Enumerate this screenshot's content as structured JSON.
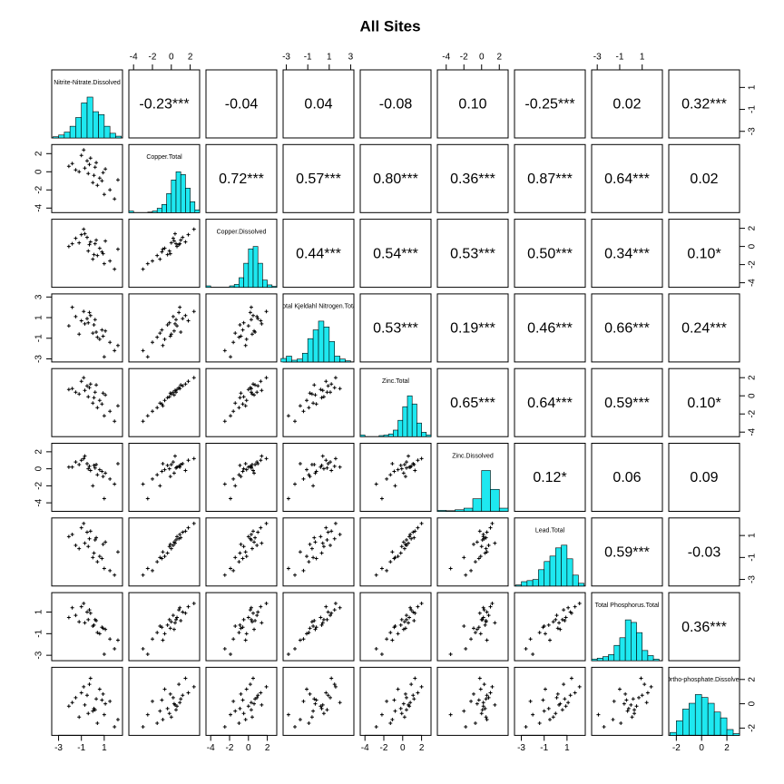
{
  "chart_data": {
    "type": "pairs",
    "title": "All Sites",
    "point_color": "#000000",
    "hist_color": "#1ee8f0",
    "variables": [
      {
        "name": "Nitrite-Nitrate.Dissolved",
        "lim": [
          -3.6,
          2.6
        ],
        "ticks": [
          -3,
          -1,
          1
        ],
        "bins": [
          -3.5,
          -3,
          -2.5,
          -2,
          -1.5,
          -1,
          -0.5,
          0,
          0.5,
          1,
          1.5,
          2,
          2.5
        ],
        "counts": [
          2,
          5,
          10,
          20,
          35,
          60,
          70,
          45,
          40,
          20,
          8,
          3
        ]
      },
      {
        "name": "Copper.Total",
        "lim": [
          -4.5,
          3
        ],
        "ticks": [
          -4,
          -2,
          0,
          2
        ],
        "bins": [
          -4.5,
          -4,
          -3.5,
          -3,
          -2.5,
          -2,
          -1.5,
          -1,
          -0.5,
          0,
          0.5,
          1,
          1.5,
          2,
          2.5,
          3
        ],
        "counts": [
          3,
          0,
          0,
          0,
          1,
          3,
          8,
          15,
          35,
          60,
          75,
          70,
          45,
          20,
          5
        ]
      },
      {
        "name": "Copper.Dissolved",
        "lim": [
          -4.5,
          3
        ],
        "ticks": [
          -4,
          -2,
          0,
          2
        ],
        "bins": [
          -4.5,
          -4,
          -3.5,
          -3,
          -2.5,
          -2,
          -1.5,
          -1,
          -0.5,
          0,
          0.5,
          1,
          1.5,
          2,
          2.5,
          3
        ],
        "counts": [
          3,
          0,
          0,
          0,
          0,
          3,
          6,
          20,
          50,
          80,
          85,
          50,
          15,
          5,
          2
        ]
      },
      {
        "name": "Total Kjeldahl Nitrogen.Total",
        "lim": [
          -3.3,
          3.3
        ],
        "ticks": [
          -3,
          -1,
          1,
          3
        ],
        "bins": [
          -3.5,
          -3,
          -2.5,
          -2,
          -1.5,
          -1,
          -0.5,
          0,
          0.5,
          1,
          1.5,
          2,
          2.5,
          3
        ],
        "counts": [
          6,
          10,
          3,
          5,
          15,
          40,
          55,
          70,
          60,
          35,
          10,
          5,
          2
        ]
      },
      {
        "name": "Zinc.Total",
        "lim": [
          -4.5,
          3
        ],
        "ticks": [
          -4,
          -2,
          0,
          2
        ],
        "bins": [
          -4.5,
          -4,
          -3.5,
          -3,
          -2.5,
          -2,
          -1.5,
          -1,
          -0.5,
          0,
          0.5,
          1,
          1.5,
          2,
          2.5,
          3
        ],
        "counts": [
          3,
          0,
          0,
          0,
          2,
          3,
          5,
          12,
          30,
          55,
          75,
          60,
          25,
          8,
          3
        ]
      },
      {
        "name": "Zinc.Dissolved",
        "lim": [
          -5,
          3
        ],
        "ticks": [
          -4,
          -2,
          0,
          2
        ],
        "bins": [
          -5,
          -4,
          -3,
          -2,
          -1,
          0,
          1,
          2,
          3
        ],
        "counts": [
          3,
          2,
          5,
          10,
          40,
          130,
          70,
          10
        ]
      },
      {
        "name": "Lead.Total",
        "lim": [
          -3.6,
          2.6
        ],
        "ticks": [
          -3,
          -1,
          1
        ],
        "bins": [
          -3.5,
          -3,
          -2.5,
          -2,
          -1.5,
          -1,
          -0.5,
          0,
          0.5,
          1,
          1.5,
          2,
          2.5
        ],
        "counts": [
          2,
          8,
          10,
          12,
          30,
          45,
          55,
          70,
          75,
          50,
          20,
          5
        ]
      },
      {
        "name": "Total Phosphorus.Total",
        "lim": [
          -3.5,
          2.8
        ],
        "ticks": [
          -3,
          -1,
          1
        ],
        "bins": [
          -3.5,
          -3,
          -2.5,
          -2,
          -1.5,
          -1,
          -0.5,
          0,
          0.5,
          1,
          1.5,
          2,
          2.5
        ],
        "counts": [
          3,
          5,
          8,
          12,
          30,
          45,
          80,
          75,
          55,
          20,
          10,
          3
        ]
      },
      {
        "name": "Ortho-phosphate.Dissolved",
        "lim": [
          -2.6,
          3
        ],
        "ticks": [
          -2,
          0,
          2
        ],
        "bins": [
          -2.5,
          -2,
          -1.5,
          -1,
          -0.5,
          0,
          0.5,
          1,
          1.5,
          2,
          2.5,
          3
        ],
        "counts": [
          5,
          25,
          45,
          55,
          70,
          65,
          55,
          40,
          30,
          10,
          3
        ]
      }
    ],
    "correlations": {
      "values": [
        [
          -0.23,
          -0.04,
          0.04,
          -0.08,
          0.1,
          -0.25,
          0.02,
          0.32
        ],
        [
          0.72,
          0.57,
          0.8,
          0.36,
          0.87,
          0.64,
          0.02
        ],
        [
          0.44,
          0.54,
          0.53,
          0.5,
          0.34,
          0.1
        ],
        [
          0.53,
          0.19,
          0.46,
          0.66,
          0.24
        ],
        [
          0.65,
          0.64,
          0.59,
          0.1
        ],
        [
          0.12,
          0.06,
          0.09
        ],
        [
          0.59,
          -0.03
        ],
        [
          0.36
        ]
      ],
      "value_labels": [
        [
          "-0.23***",
          "-0.04",
          "0.04",
          "-0.08",
          "0.10",
          "-0.25***",
          "0.02",
          "0.32***"
        ],
        [
          "0.72***",
          "0.57***",
          "0.80***",
          "0.36***",
          "0.87***",
          "0.64***",
          "0.02"
        ],
        [
          "0.44***",
          "0.54***",
          "0.53***",
          "0.50***",
          "0.34***",
          "0.10*"
        ],
        [
          "0.53***",
          "0.19***",
          "0.46***",
          "0.66***",
          "0.24***"
        ],
        [
          "0.65***",
          "0.64***",
          "0.59***",
          "0.10*"
        ],
        [
          "0.12*",
          "0.06",
          "0.09"
        ],
        [
          "0.59***",
          "-0.03"
        ],
        [
          "0.36***"
        ]
      ]
    },
    "observations": [
      [
        0.2,
        0.5,
        0.3,
        0.8,
        0.4,
        0.1,
        0.6,
        0.3,
        -0.5
      ],
      [
        0.8,
        -1.0,
        -0.6,
        -0.2,
        -0.9,
        -0.3,
        -1.1,
        -0.4,
        0.3
      ],
      [
        -0.5,
        1.2,
        1.0,
        0.9,
        1.1,
        0.6,
        1.3,
        1.0,
        0.7
      ],
      [
        -1.2,
        0.0,
        0.4,
        -0.6,
        0.2,
        0.5,
        -0.2,
        0.1,
        -1.1
      ],
      [
        1.5,
        -2.0,
        -1.6,
        -1.4,
        -1.7,
        -1.2,
        -2.2,
        -1.5,
        0.2
      ],
      [
        -0.3,
        0.8,
        0.2,
        1.5,
        0.9,
        0.3,
        0.7,
        1.2,
        1.6
      ],
      [
        0.1,
        -0.4,
        -0.9,
        0.3,
        -0.2,
        0.4,
        -0.6,
        -0.2,
        -0.4
      ],
      [
        -1.0,
        1.8,
        1.3,
        0.7,
        1.6,
        1.0,
        1.7,
        1.5,
        0.9
      ],
      [
        1.1,
        0.3,
        0.6,
        -0.3,
        0.1,
        -0.5,
        0.4,
        -0.6,
        0.0
      ],
      [
        0.4,
        -1.5,
        -1.0,
        -0.9,
        -1.3,
        -0.7,
        -1.4,
        -0.9,
        -1.6
      ],
      [
        -2.1,
        0.6,
        0.0,
        0.2,
        0.7,
        0.2,
        0.9,
        0.5,
        -0.2
      ],
      [
        0.6,
        -0.7,
        -0.2,
        -1.1,
        -0.5,
        -0.1,
        -0.9,
        -1.0,
        1.2
      ],
      [
        -0.8,
        2.4,
        1.9,
        1.6,
        2.0,
        1.2,
        2.1,
        1.8,
        1.4
      ],
      [
        -0.4,
        -0.2,
        -0.5,
        0.5,
        -0.1,
        0.0,
        0.0,
        0.3,
        -0.8
      ],
      [
        0.3,
        1.0,
        0.7,
        -0.4,
        1.2,
        0.5,
        0.8,
        0.2,
        0.4
      ],
      [
        1.9,
        -3.0,
        -2.5,
        -2.2,
        -2.8,
        -1.8,
        -2.6,
        -2.4,
        -1.9
      ],
      [
        -1.5,
        0.2,
        0.9,
        1.1,
        0.4,
        0.8,
        0.1,
        0.7,
        0.5
      ],
      [
        0.0,
        -1.2,
        -1.4,
        -0.5,
        -0.8,
        -2.0,
        -1.0,
        -0.3,
        -0.6
      ],
      [
        -0.2,
        1.5,
        0.5,
        1.2,
        1.3,
        -0.2,
        1.4,
        0.9,
        2.1
      ],
      [
        2.2,
        -0.9,
        -0.3,
        -1.7,
        -1.1,
        0.6,
        -0.5,
        -1.6,
        -1.3
      ],
      [
        -0.7,
        0.4,
        1.4,
        0.4,
        0.6,
        1.5,
        0.3,
        0.0,
        -0.1
      ],
      [
        0.9,
        -0.1,
        -0.8,
        -0.8,
        0.3,
        -0.9,
        0.2,
        -0.5,
        0.8
      ],
      [
        -1.8,
        0.9,
        0.3,
        2.0,
        0.8,
        0.2,
        1.1,
        1.4,
        0.1
      ],
      [
        1.0,
        -2.5,
        -1.9,
        -2.8,
        -2.2,
        -3.5,
        -2.0,
        -2.9,
        -0.9
      ]
    ]
  }
}
